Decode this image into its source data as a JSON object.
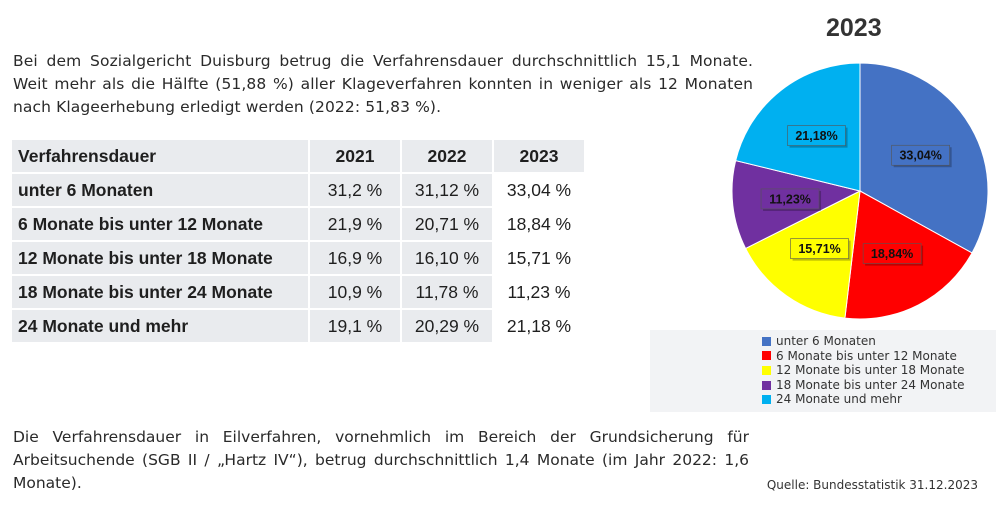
{
  "intro_text": "Bei dem Sozialgericht Duisburg betrug die Verfahrensdauer durchschnittlich 15,1 Monate. Weit mehr als die Hälfte (51,88 %) aller Klageverfahren konnten in weniger als 12 Monaten nach Klageerhebung erledigt werden (2022: 51,83 %).",
  "table": {
    "header": [
      "Verfahrensdauer",
      "2021",
      "2022",
      "2023"
    ],
    "rows": [
      {
        "label": "unter 6 Monaten",
        "v2021": "31,2 %",
        "v2022": "31,12 %",
        "v2023": "33,04 %"
      },
      {
        "label": "6 Monate bis unter 12 Monate",
        "v2021": "21,9 %",
        "v2022": "20,71 %",
        "v2023": "18,84 %"
      },
      {
        "label": "12 Monate bis unter 18 Monate",
        "v2021": "16,9 %",
        "v2022": "16,10 %",
        "v2023": "15,71 %"
      },
      {
        "label": "18 Monate bis unter 24 Monate",
        "v2021": "10,9 %",
        "v2022": "11,78 %",
        "v2023": "11,23 %"
      },
      {
        "label": "24 Monate und mehr",
        "v2021": "19,1 %",
        "v2022": "20,29 %",
        "v2023": "21,18 %"
      }
    ]
  },
  "chart_data": {
    "type": "pie",
    "title": "2023",
    "categories": [
      "unter 6 Monaten",
      "6 Monate bis unter 12 Monate",
      "12 Monate bis unter 18 Monate",
      "18 Monate bis unter 24 Monate",
      "24 Monate und mehr"
    ],
    "values": [
      33.04,
      18.84,
      15.71,
      11.23,
      21.18
    ],
    "labels": [
      "33,04%",
      "18,84%",
      "15,71%",
      "11,23%",
      "21,18%"
    ],
    "colors": [
      "#4472c4",
      "#ff0000",
      "#ffff00",
      "#7030a0",
      "#00b0f0"
    ],
    "legend_position": "bottom"
  },
  "outro_text": "Die Verfahrensdauer in Eilverfahren, vornehmlich im Bereich der Grundsicherung für Arbeitsuchende (SGB II / „Hartz IV“), betrug durchschnittlich 1,4 Monate (im Jahr 2022: 1,6 Monate).",
  "source": "Quelle: Bundesstatistik 31.12.2023"
}
